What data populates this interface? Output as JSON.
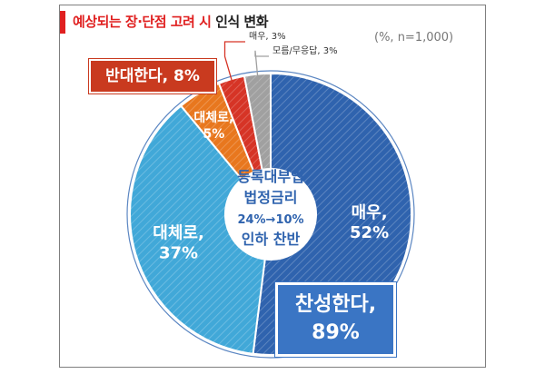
{
  "title_red": "예상되는 장·단점 고려 시",
  "title_dark": "인식 변화",
  "unit_note": "(%, n=1,000)",
  "center_text": [
    "등록대부업",
    "법정금리",
    "24%→10%",
    "인하 찬반"
  ],
  "callouts": {
    "oppose": "반대한다, 8%",
    "support_line1": "찬성한다,",
    "support_line2": "89%"
  },
  "colors": {
    "very_support": "#2f63ae",
    "somewhat_support": "#41a8d8",
    "somewhat_oppose": "#e8771e",
    "very_oppose": "#d63426",
    "dont_know": "#a0a0a0"
  },
  "chart_data": {
    "type": "pie",
    "donut": true,
    "slices": [
      {
        "label_line1": "매우,",
        "label_line2": "52%",
        "value": 52,
        "color_key": "very_support"
      },
      {
        "label_line1": "대체로,",
        "label_line2": "37%",
        "value": 37,
        "color_key": "somewhat_support"
      },
      {
        "label_line1": "대체로,",
        "label_line2": "5%",
        "value": 5,
        "color_key": "somewhat_oppose"
      },
      {
        "label_line1": "매우, 3%",
        "label_line2": "",
        "value": 3,
        "color_key": "very_oppose"
      },
      {
        "label_line1": "모름/무응답, 3%",
        "label_line2": "",
        "value": 3,
        "color_key": "dont_know"
      }
    ]
  }
}
